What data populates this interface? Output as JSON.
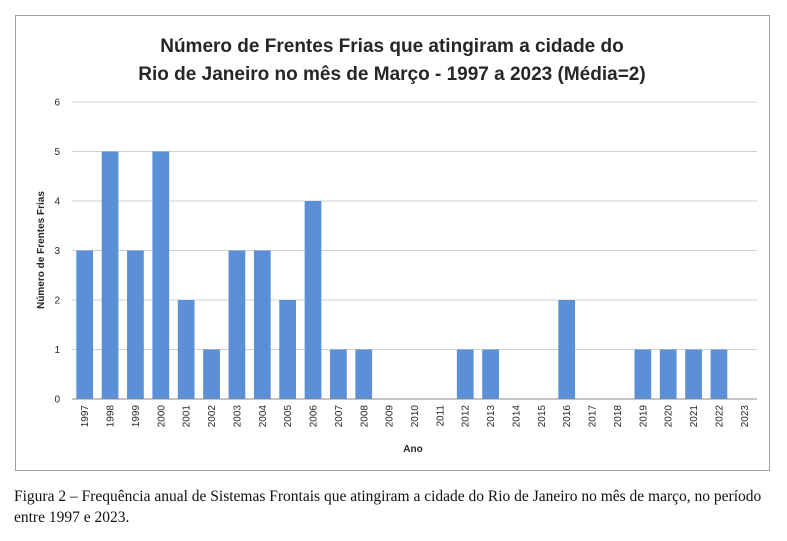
{
  "chart_data": {
    "type": "bar",
    "title_line1": "Número de Frentes Frias que atingiram a cidade do",
    "title_line2": "Rio de Janeiro no mês de Março - 1997 a 2023 (Média=2)",
    "xlabel": "Ano",
    "ylabel": "Número de Frentes Frias",
    "ylim": [
      0,
      6
    ],
    "yticks": [
      "0",
      "1",
      "2",
      "3",
      "4",
      "5",
      "6"
    ],
    "grid": true,
    "legend": "none",
    "bar_color": "#5b8fd6",
    "categories": [
      "1997",
      "1998",
      "1999",
      "2000",
      "2001",
      "2002",
      "2003",
      "2004",
      "2005",
      "2006",
      "2007",
      "2008",
      "2009",
      "2010",
      "2011",
      "2012",
      "2013",
      "2014",
      "2015",
      "2016",
      "2017",
      "2018",
      "2019",
      "2020",
      "2021",
      "2022",
      "2023"
    ],
    "values": [
      3,
      5,
      3,
      5,
      2,
      1,
      3,
      3,
      2,
      4,
      1,
      1,
      0,
      0,
      0,
      1,
      1,
      0,
      0,
      2,
      0,
      0,
      1,
      1,
      1,
      1,
      0
    ]
  },
  "caption": "Figura 2 – Frequência anual de Sistemas Frontais que atingiram a cidade do Rio de Janeiro no mês de março, no período entre 1997 e 2023."
}
